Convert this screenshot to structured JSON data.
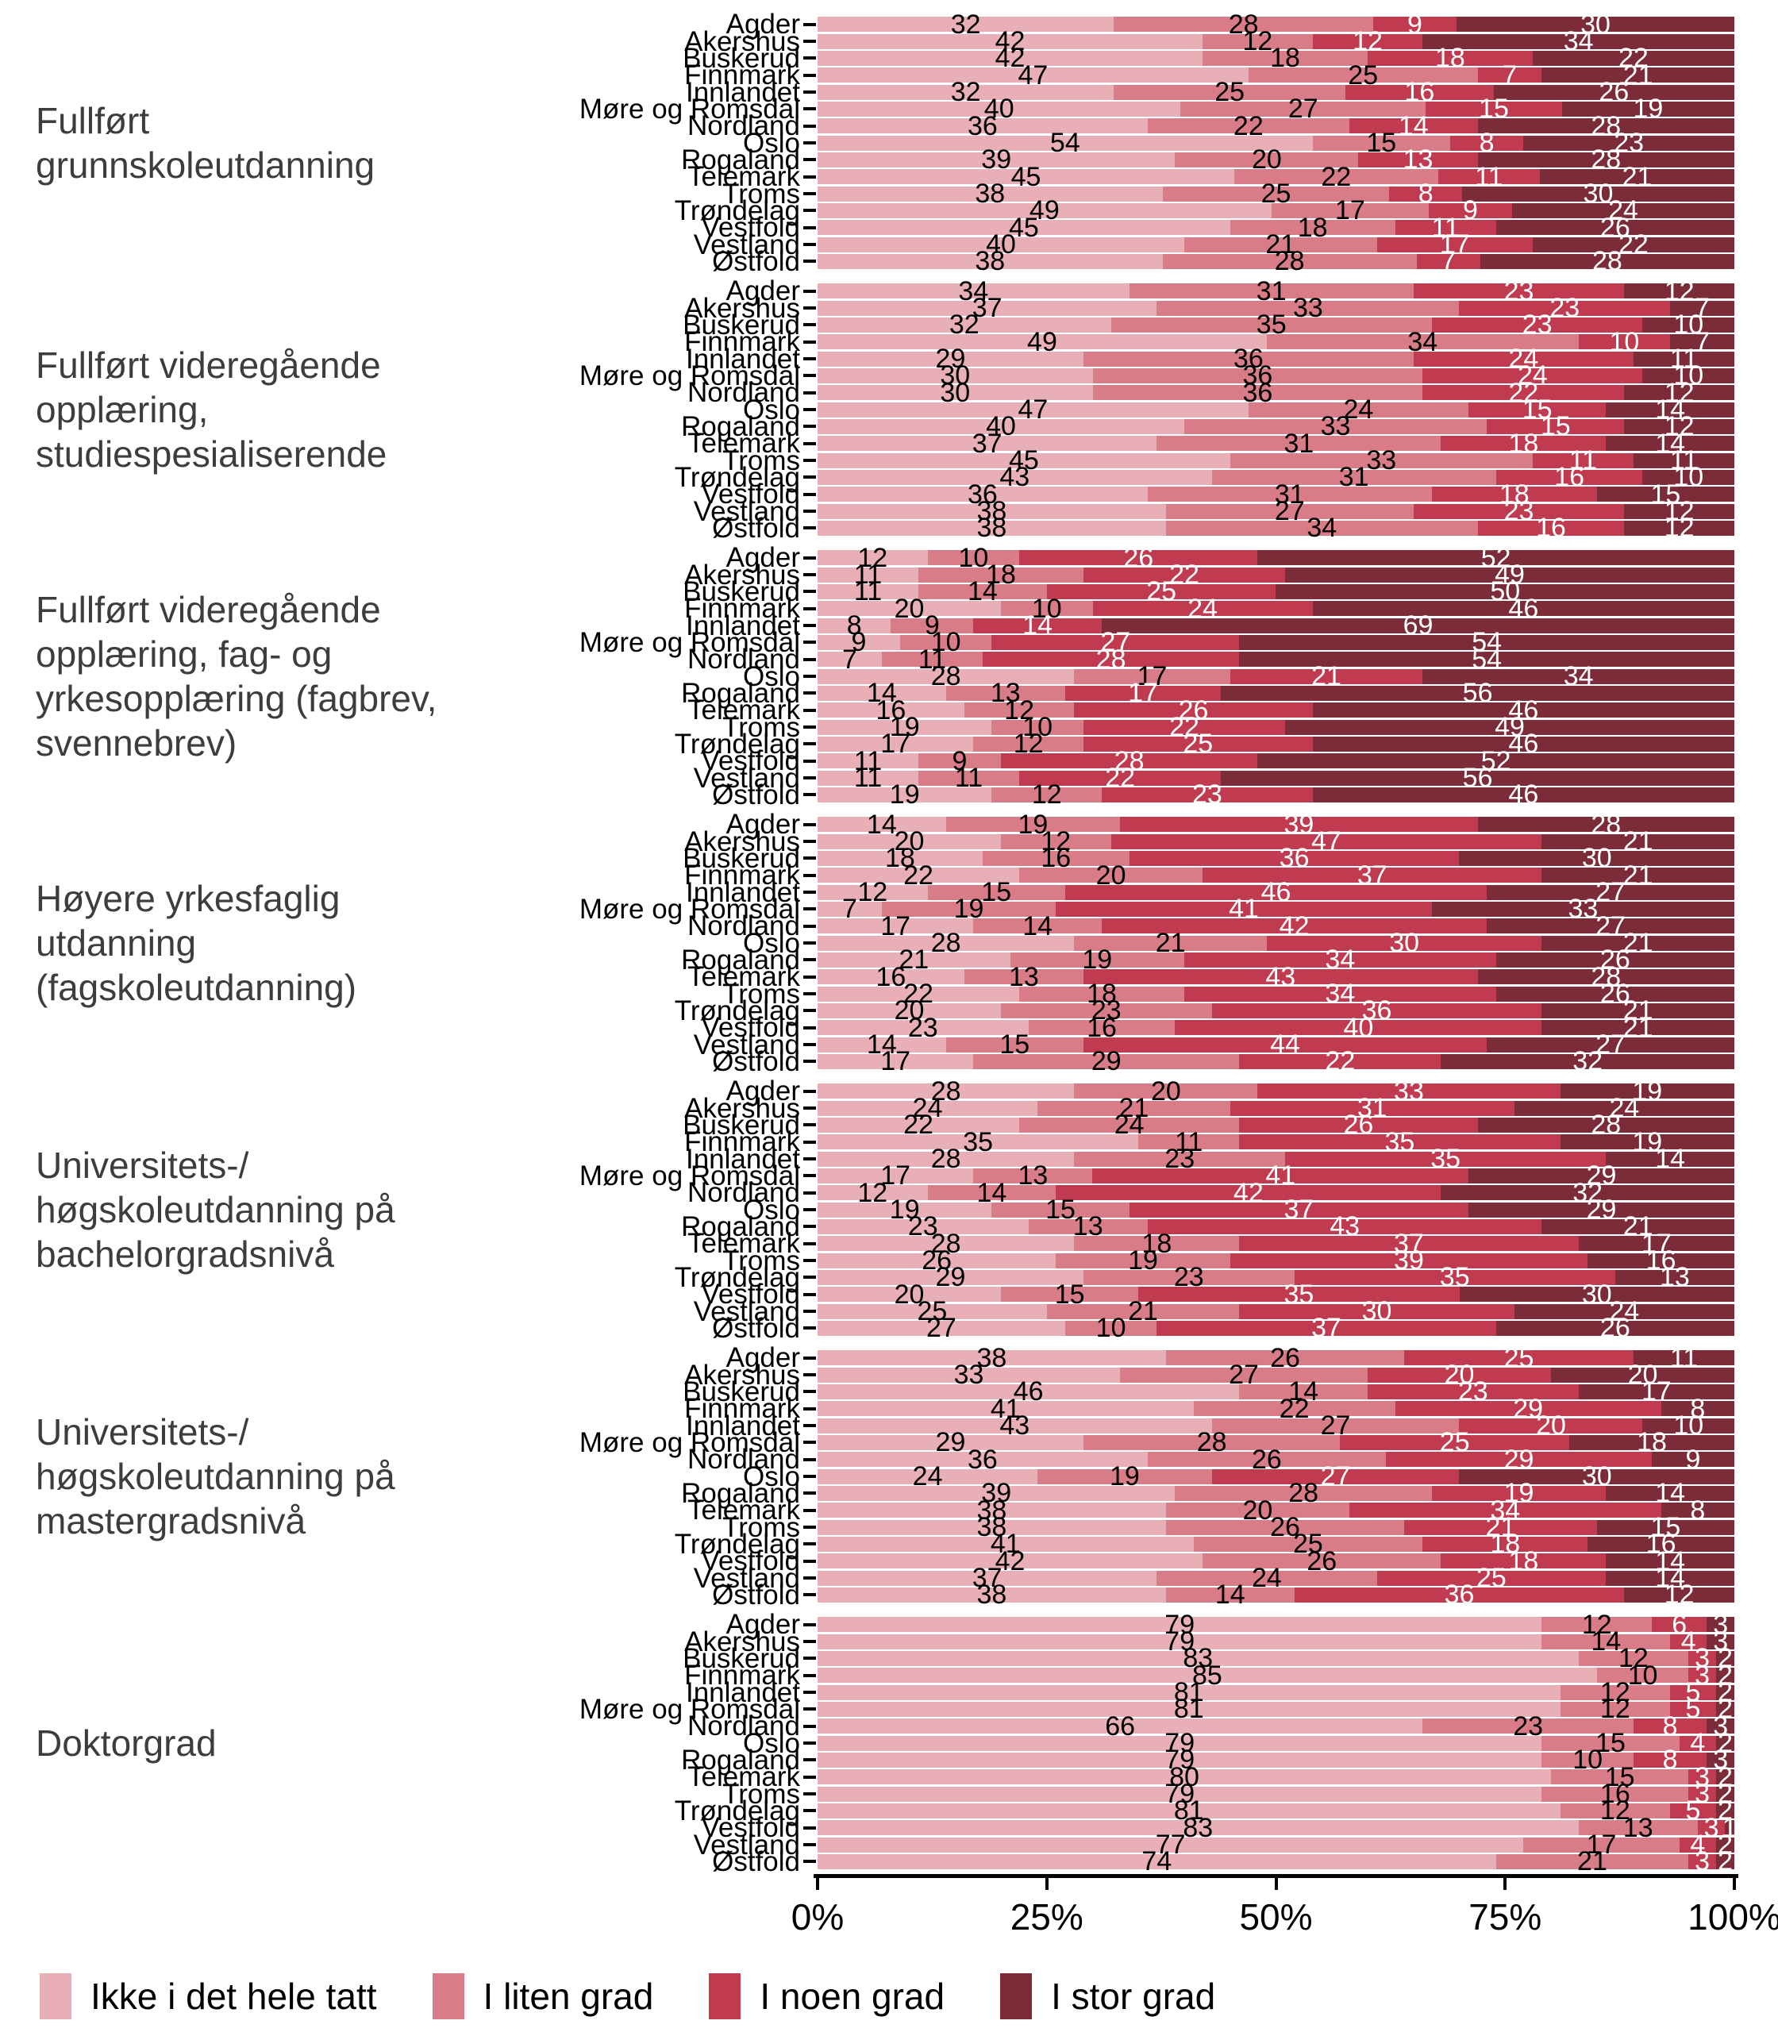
{
  "chart_data": {
    "type": "bar",
    "variant": "stacked-horizontal-100pct",
    "title": "",
    "xlabel": "",
    "ylabel": "",
    "unit": "%",
    "xlim": [
      0,
      100
    ],
    "grid": "white-row-separators",
    "legend_position": "bottom",
    "x_ticks": [
      {
        "label": "0%",
        "value": 0
      },
      {
        "label": "25%",
        "value": 25
      },
      {
        "label": "50%",
        "value": 50
      },
      {
        "label": "75%",
        "value": 75
      },
      {
        "label": "100%",
        "value": 100
      }
    ],
    "categories": [
      "Agder",
      "Akershus",
      "Buskerud",
      "Finnmark",
      "Innlandet",
      "Møre og Romsdal",
      "Nordland",
      "Oslo",
      "Rogaland",
      "Telemark",
      "Troms",
      "Trøndelag",
      "Vestfold",
      "Vestland",
      "Østfold"
    ],
    "series_legend": [
      {
        "label": "Ikke i det hele tatt",
        "color": "#E8AFB7"
      },
      {
        "label": "I liten grad",
        "color": "#D87C88"
      },
      {
        "label": "I noen grad",
        "color": "#C13B50"
      },
      {
        "label": "I stor grad",
        "color": "#7C2B39"
      }
    ],
    "facets": [
      {
        "title": "Fullført\ngrunnskoleutdanning",
        "rows": [
          [
            32,
            28,
            9,
            30
          ],
          [
            42,
            12,
            12,
            34
          ],
          [
            42,
            18,
            18,
            22
          ],
          [
            47,
            25,
            7,
            21
          ],
          [
            32,
            25,
            16,
            26
          ],
          [
            40,
            27,
            15,
            19
          ],
          [
            36,
            22,
            14,
            28
          ],
          [
            54,
            15,
            8,
            23
          ],
          [
            39,
            20,
            13,
            28
          ],
          [
            45,
            22,
            11,
            21
          ],
          [
            38,
            25,
            8,
            30
          ],
          [
            49,
            17,
            9,
            24
          ],
          [
            45,
            18,
            11,
            26
          ],
          [
            40,
            21,
            17,
            22
          ],
          [
            38,
            28,
            7,
            28
          ]
        ]
      },
      {
        "title": "Fullført videregående\nopplæring,\nstudiespesialiserende",
        "rows": [
          [
            34,
            31,
            23,
            12
          ],
          [
            37,
            33,
            23,
            7
          ],
          [
            32,
            35,
            23,
            10
          ],
          [
            49,
            34,
            10,
            7
          ],
          [
            29,
            36,
            24,
            11
          ],
          [
            30,
            36,
            24,
            10
          ],
          [
            30,
            36,
            22,
            12
          ],
          [
            47,
            24,
            15,
            14
          ],
          [
            40,
            33,
            15,
            12
          ],
          [
            37,
            31,
            18,
            14
          ],
          [
            45,
            33,
            11,
            11
          ],
          [
            43,
            31,
            16,
            10
          ],
          [
            36,
            31,
            18,
            15
          ],
          [
            38,
            27,
            23,
            12
          ],
          [
            38,
            34,
            16,
            12
          ]
        ]
      },
      {
        "title": "Fullført videregående\nopplæring, fag- og\nyrkesopplæring (fagbrev,\nsvennebrev)",
        "rows": [
          [
            12,
            10,
            26,
            52
          ],
          [
            11,
            18,
            22,
            49
          ],
          [
            11,
            14,
            25,
            50
          ],
          [
            20,
            10,
            24,
            46
          ],
          [
            8,
            9,
            14,
            69
          ],
          [
            9,
            10,
            27,
            54
          ],
          [
            7,
            11,
            28,
            54
          ],
          [
            28,
            17,
            21,
            34
          ],
          [
            14,
            13,
            17,
            56
          ],
          [
            16,
            12,
            26,
            46
          ],
          [
            19,
            10,
            22,
            49
          ],
          [
            17,
            12,
            25,
            46
          ],
          [
            11,
            9,
            28,
            52
          ],
          [
            11,
            11,
            22,
            56
          ],
          [
            19,
            12,
            23,
            46
          ]
        ]
      },
      {
        "title": "Høyere yrkesfaglig\nutdanning\n(fagskoleutdanning)",
        "rows": [
          [
            14,
            19,
            39,
            28
          ],
          [
            20,
            12,
            47,
            21
          ],
          [
            18,
            16,
            36,
            30
          ],
          [
            22,
            20,
            37,
            21
          ],
          [
            12,
            15,
            46,
            27
          ],
          [
            7,
            19,
            41,
            33
          ],
          [
            17,
            14,
            42,
            27
          ],
          [
            28,
            21,
            30,
            21
          ],
          [
            21,
            19,
            34,
            26
          ],
          [
            16,
            13,
            43,
            28
          ],
          [
            22,
            18,
            34,
            26
          ],
          [
            20,
            23,
            36,
            21
          ],
          [
            23,
            16,
            40,
            21
          ],
          [
            14,
            15,
            44,
            27
          ],
          [
            17,
            29,
            22,
            32
          ]
        ]
      },
      {
        "title": "Universitets-/\nhøgskoleutdanning på\nbachelorgradsnivå",
        "rows": [
          [
            28,
            20,
            33,
            19
          ],
          [
            24,
            21,
            31,
            24
          ],
          [
            22,
            24,
            26,
            28
          ],
          [
            35,
            11,
            35,
            19
          ],
          [
            28,
            23,
            35,
            14
          ],
          [
            17,
            13,
            41,
            29
          ],
          [
            12,
            14,
            42,
            32
          ],
          [
            19,
            15,
            37,
            29
          ],
          [
            23,
            13,
            43,
            21
          ],
          [
            28,
            18,
            37,
            17
          ],
          [
            26,
            19,
            39,
            16
          ],
          [
            29,
            23,
            35,
            13
          ],
          [
            20,
            15,
            35,
            30
          ],
          [
            25,
            21,
            30,
            24
          ],
          [
            27,
            10,
            37,
            26
          ]
        ]
      },
      {
        "title": "Universitets-/\nhøgskoleutdanning på\nmastergradsnivå",
        "rows": [
          [
            38,
            26,
            25,
            11
          ],
          [
            33,
            27,
            20,
            20
          ],
          [
            46,
            14,
            23,
            17
          ],
          [
            41,
            22,
            29,
            8
          ],
          [
            43,
            27,
            20,
            10
          ],
          [
            29,
            28,
            25,
            18
          ],
          [
            36,
            26,
            29,
            9
          ],
          [
            24,
            19,
            27,
            30
          ],
          [
            39,
            28,
            19,
            14
          ],
          [
            38,
            20,
            34,
            8
          ],
          [
            38,
            26,
            21,
            15
          ],
          [
            41,
            25,
            18,
            16
          ],
          [
            42,
            26,
            18,
            14
          ],
          [
            37,
            24,
            25,
            14
          ],
          [
            38,
            14,
            36,
            12
          ]
        ]
      },
      {
        "title": "Doktorgrad",
        "rows": [
          [
            79,
            12,
            6,
            3
          ],
          [
            79,
            14,
            4,
            3
          ],
          [
            83,
            12,
            3,
            2
          ],
          [
            85,
            10,
            3,
            2
          ],
          [
            81,
            12,
            5,
            2
          ],
          [
            81,
            12,
            5,
            2
          ],
          [
            66,
            23,
            8,
            3
          ],
          [
            79,
            15,
            4,
            2
          ],
          [
            79,
            10,
            8,
            3
          ],
          [
            80,
            15,
            3,
            2
          ],
          [
            79,
            16,
            3,
            2
          ],
          [
            81,
            12,
            5,
            2
          ],
          [
            83,
            13,
            3,
            1
          ],
          [
            77,
            17,
            4,
            2
          ],
          [
            74,
            21,
            3,
            2
          ]
        ]
      }
    ]
  }
}
